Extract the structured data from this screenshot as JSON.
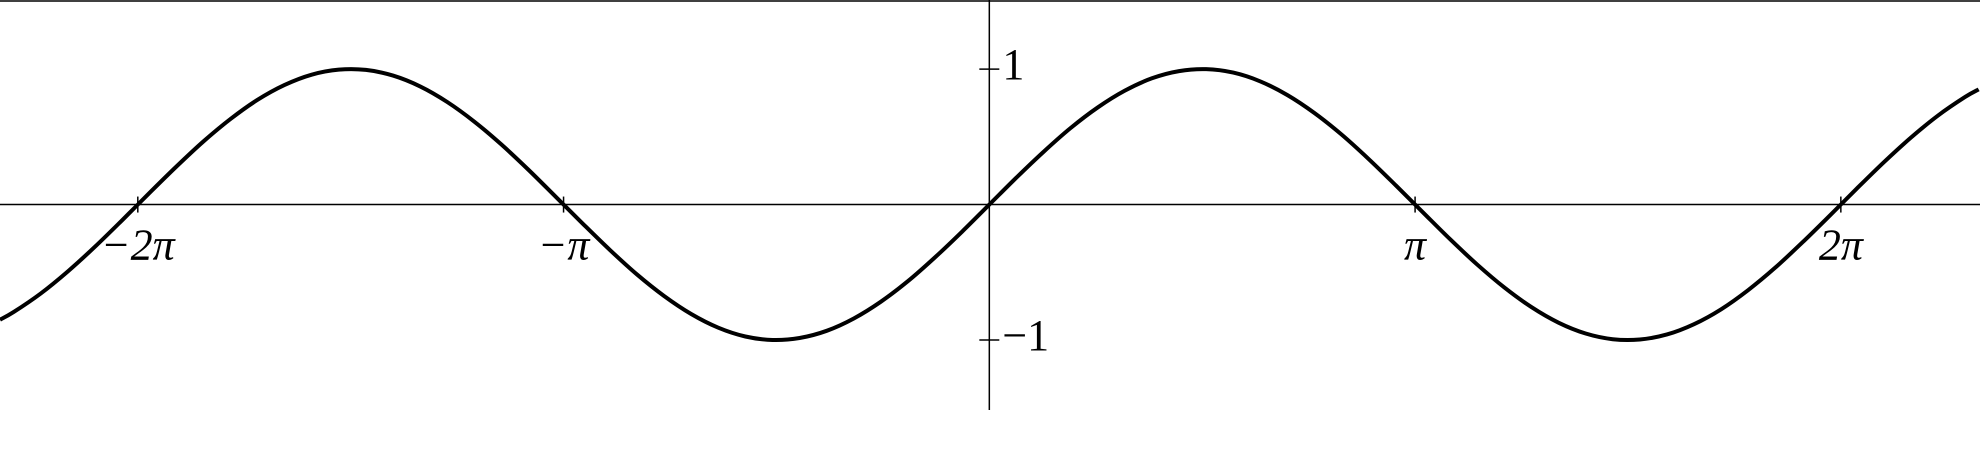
{
  "chart_data": {
    "type": "line",
    "color": "#000000",
    "x": [
      -7.3,
      -7.2,
      -7.0,
      -6.8,
      -6.6,
      -6.4,
      -6.2,
      -6.0,
      -5.8,
      -5.6,
      -5.4,
      -5.2,
      -5.0,
      -4.8,
      -4.6,
      -4.4,
      -4.2,
      -4.0,
      -3.8,
      -3.6,
      -3.4,
      -3.2,
      -3.0,
      -2.8,
      -2.6,
      -2.4,
      -2.2,
      -2.0,
      -1.8,
      -1.6,
      -1.4,
      -1.2,
      -1.0,
      -0.8,
      -0.6,
      -0.4,
      -0.2,
      0,
      0.2,
      0.4,
      0.6,
      0.8,
      1.0,
      1.2,
      1.4,
      1.6,
      1.8,
      2.0,
      2.2,
      2.4,
      2.6,
      2.8,
      3.0,
      3.2,
      3.4,
      3.6,
      3.8,
      4.0,
      4.2,
      4.4,
      4.6,
      4.8,
      5.0,
      5.2,
      5.4,
      5.6,
      5.8,
      6.0,
      6.2,
      6.4,
      6.6,
      6.8,
      7.0,
      7.2,
      7.3
    ],
    "values": [
      -0.85,
      -0.794,
      -0.657,
      -0.494,
      -0.312,
      -0.117,
      0.083,
      0.279,
      0.465,
      0.631,
      0.773,
      0.883,
      0.959,
      0.996,
      0.994,
      0.952,
      0.872,
      0.757,
      0.612,
      0.443,
      0.256,
      0.058,
      -0.141,
      -0.335,
      -0.516,
      -0.675,
      -0.808,
      -0.909,
      -0.974,
      -0.9996,
      -0.985,
      -0.932,
      -0.841,
      -0.717,
      -0.565,
      -0.389,
      -0.199,
      0,
      0.199,
      0.389,
      0.565,
      0.717,
      0.841,
      0.932,
      0.985,
      0.9996,
      0.974,
      0.909,
      0.808,
      0.675,
      0.516,
      0.335,
      0.141,
      -0.058,
      -0.256,
      -0.443,
      -0.612,
      -0.757,
      -0.872,
      -0.952,
      -0.994,
      -0.996,
      -0.959,
      -0.883,
      -0.773,
      -0.631,
      -0.465,
      -0.279,
      -0.083,
      0.117,
      0.312,
      0.494,
      0.657,
      0.794,
      0.85
    ],
    "xlim": [
      -7.3,
      7.31
    ],
    "ylim": [
      -1.93,
      1.51
    ],
    "xticks": [
      {
        "value": -6.2832,
        "label": "−2π"
      },
      {
        "value": -3.1416,
        "label": "−π"
      },
      {
        "value": 3.1416,
        "label": "π"
      },
      {
        "value": 6.2832,
        "label": "2π"
      }
    ],
    "yticks": [
      1,
      {
        "value": -1,
        "label": "−1"
      }
    ]
  }
}
